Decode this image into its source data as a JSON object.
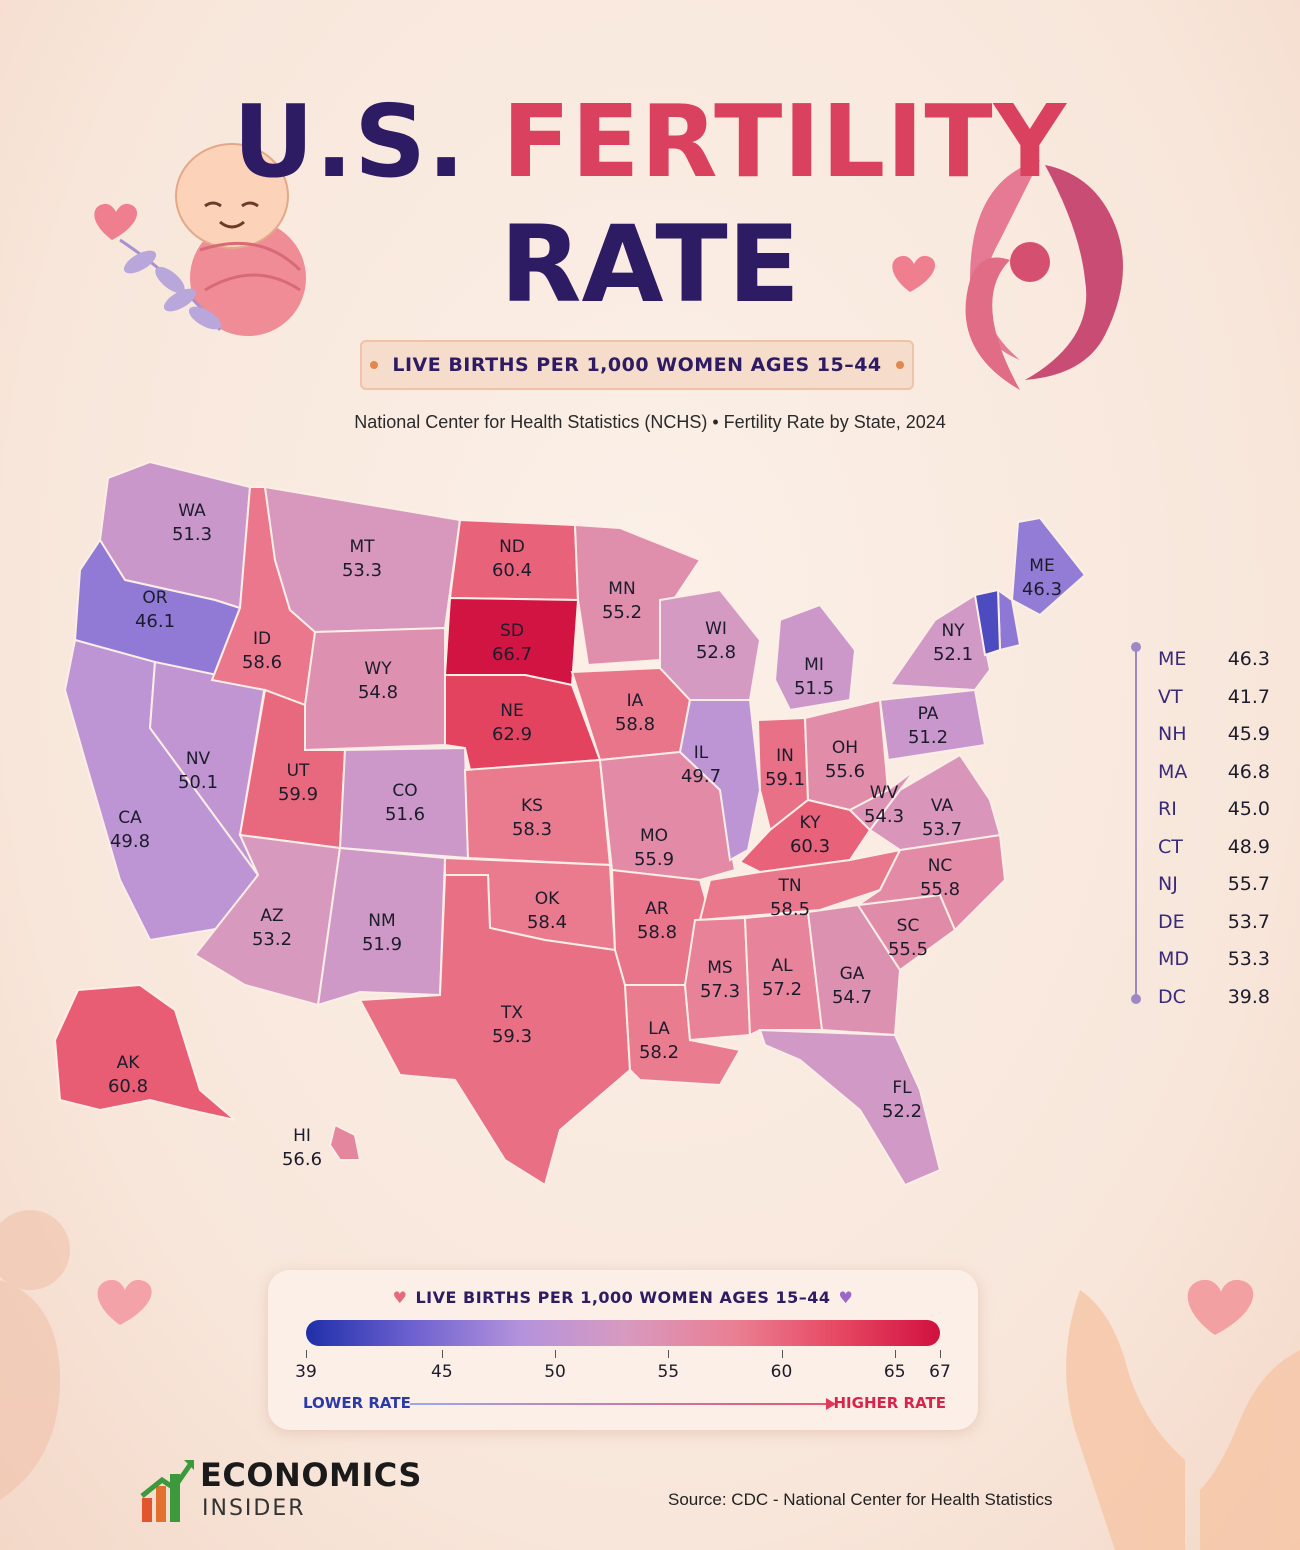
{
  "title": {
    "line1_part1": "U.S.",
    "line1_part2": "FERTILITY",
    "line2": "RATE"
  },
  "ribbon": "LIVE BIRTHS PER 1,000 WOMEN AGES 15–44",
  "subtitle": "National Center for Health Statistics (NCHS) • Fertility Rate by State, 2024",
  "states": [
    {
      "abbr": "WA",
      "value": "51.3"
    },
    {
      "abbr": "OR",
      "value": "46.1"
    },
    {
      "abbr": "CA",
      "value": "49.8"
    },
    {
      "abbr": "NV",
      "value": "50.1"
    },
    {
      "abbr": "ID",
      "value": "58.6"
    },
    {
      "abbr": "MT",
      "value": "53.3"
    },
    {
      "abbr": "WY",
      "value": "54.8"
    },
    {
      "abbr": "UT",
      "value": "59.9"
    },
    {
      "abbr": "AZ",
      "value": "53.2"
    },
    {
      "abbr": "CO",
      "value": "51.6"
    },
    {
      "abbr": "NM",
      "value": "51.9"
    },
    {
      "abbr": "ND",
      "value": "60.4"
    },
    {
      "abbr": "SD",
      "value": "66.7"
    },
    {
      "abbr": "NE",
      "value": "62.9"
    },
    {
      "abbr": "KS",
      "value": "58.3"
    },
    {
      "abbr": "OK",
      "value": "58.4"
    },
    {
      "abbr": "TX",
      "value": "59.3"
    },
    {
      "abbr": "MN",
      "value": "55.2"
    },
    {
      "abbr": "IA",
      "value": "58.8"
    },
    {
      "abbr": "MO",
      "value": "55.9"
    },
    {
      "abbr": "AR",
      "value": "58.8"
    },
    {
      "abbr": "LA",
      "value": "58.2"
    },
    {
      "abbr": "WI",
      "value": "52.8"
    },
    {
      "abbr": "IL",
      "value": "49.7"
    },
    {
      "abbr": "MI",
      "value": "51.5"
    },
    {
      "abbr": "IN",
      "value": "59.1"
    },
    {
      "abbr": "OH",
      "value": "55.6"
    },
    {
      "abbr": "KY",
      "value": "60.3"
    },
    {
      "abbr": "TN",
      "value": "58.5"
    },
    {
      "abbr": "MS",
      "value": "57.3"
    },
    {
      "abbr": "AL",
      "value": "57.2"
    },
    {
      "abbr": "GA",
      "value": "54.7"
    },
    {
      "abbr": "FL",
      "value": "52.2"
    },
    {
      "abbr": "SC",
      "value": "55.5"
    },
    {
      "abbr": "NC",
      "value": "55.8"
    },
    {
      "abbr": "VA",
      "value": "53.7"
    },
    {
      "abbr": "WV",
      "value": "54.3"
    },
    {
      "abbr": "PA",
      "value": "51.2"
    },
    {
      "abbr": "NY",
      "value": "52.1"
    },
    {
      "abbr": "ME",
      "value": "46.3"
    },
    {
      "abbr": "AK",
      "value": "60.8"
    },
    {
      "abbr": "HI",
      "value": "56.6"
    }
  ],
  "small_states": [
    {
      "abbr": "ME",
      "value": "46.3"
    },
    {
      "abbr": "VT",
      "value": "41.7"
    },
    {
      "abbr": "NH",
      "value": "45.9"
    },
    {
      "abbr": "MA",
      "value": "46.8"
    },
    {
      "abbr": "RI",
      "value": "45.0"
    },
    {
      "abbr": "CT",
      "value": "48.9"
    },
    {
      "abbr": "NJ",
      "value": "55.7"
    },
    {
      "abbr": "DE",
      "value": "53.7"
    },
    {
      "abbr": "MD",
      "value": "53.3"
    },
    {
      "abbr": "DC",
      "value": "39.8"
    }
  ],
  "legend": {
    "title": "LIVE BIRTHS PER 1,000 WOMEN AGES 15–44",
    "min": 39,
    "max": 67,
    "ticks": [
      "39",
      "45",
      "50",
      "55",
      "60",
      "65",
      "67"
    ],
    "low_label": "LOWER RATE",
    "high_label": "HIGHER RATE",
    "colors": {
      "low": "#1f2fa8",
      "mid": "#d79ac0",
      "high": "#d11040"
    }
  },
  "brand": {
    "line1": "ECONOMICS",
    "line2": "INSIDER"
  },
  "source": "Source:  CDC - National Center for Health Statistics"
}
